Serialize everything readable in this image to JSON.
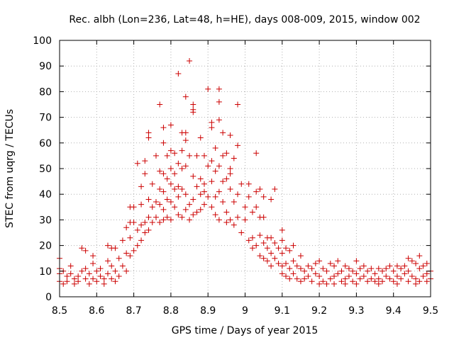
{
  "chart_data": {
    "type": "scatter",
    "title": "Rec. albh (Lon=236, Lat=48, h=HE), days 008-009, 2015, window 002",
    "xlabel": "GPS time / Days of year 2015",
    "ylabel": "STEC from uqrg / TECUs",
    "xlim": [
      8.5,
      9.5
    ],
    "ylim": [
      0,
      100
    ],
    "xticks": [
      8.5,
      8.6,
      8.7,
      8.8,
      8.9,
      9.0,
      9.1,
      9.2,
      9.3,
      9.4,
      9.5
    ],
    "xtick_labels": [
      "8.5",
      "8.6",
      "8.7",
      "8.8",
      "8.9",
      "9",
      "9.1",
      "9.2",
      "9.3",
      "9.4",
      "9.5"
    ],
    "yticks": [
      0,
      10,
      20,
      30,
      40,
      50,
      60,
      70,
      80,
      90,
      100
    ],
    "ytick_labels": [
      "0",
      "10",
      "20",
      "30",
      "40",
      "50",
      "60",
      "70",
      "80",
      "90",
      "100"
    ],
    "grid": true,
    "marker": "+",
    "color": "#cc0000",
    "series": [
      {
        "name": "STEC",
        "points": [
          [
            8.5,
            15
          ],
          [
            8.5,
            11
          ],
          [
            8.5,
            9
          ],
          [
            8.5,
            6
          ],
          [
            8.51,
            10
          ],
          [
            8.51,
            5
          ],
          [
            8.52,
            8
          ],
          [
            8.52,
            6
          ],
          [
            8.53,
            12
          ],
          [
            8.53,
            9
          ],
          [
            8.54,
            7
          ],
          [
            8.54,
            5
          ],
          [
            8.55,
            8
          ],
          [
            8.55,
            6
          ],
          [
            8.56,
            19
          ],
          [
            8.56,
            10
          ],
          [
            8.57,
            18
          ],
          [
            8.57,
            11
          ],
          [
            8.57,
            7
          ],
          [
            8.58,
            5
          ],
          [
            8.58,
            9
          ],
          [
            8.59,
            16
          ],
          [
            8.59,
            13
          ],
          [
            8.59,
            7
          ],
          [
            8.6,
            10
          ],
          [
            8.6,
            6
          ],
          [
            8.61,
            11
          ],
          [
            8.61,
            8
          ],
          [
            8.62,
            7
          ],
          [
            8.62,
            5
          ],
          [
            8.63,
            20
          ],
          [
            8.63,
            14
          ],
          [
            8.63,
            9
          ],
          [
            8.64,
            19
          ],
          [
            8.64,
            12
          ],
          [
            8.64,
            7
          ],
          [
            8.65,
            19
          ],
          [
            8.65,
            10
          ],
          [
            8.65,
            6
          ],
          [
            8.66,
            15
          ],
          [
            8.66,
            8
          ],
          [
            8.67,
            22
          ],
          [
            8.67,
            12
          ],
          [
            8.68,
            27
          ],
          [
            8.68,
            17
          ],
          [
            8.68,
            10
          ],
          [
            8.69,
            35
          ],
          [
            8.69,
            29
          ],
          [
            8.69,
            23
          ],
          [
            8.69,
            16
          ],
          [
            8.7,
            35
          ],
          [
            8.7,
            29
          ],
          [
            8.7,
            18
          ],
          [
            8.71,
            52
          ],
          [
            8.71,
            26
          ],
          [
            8.71,
            20
          ],
          [
            8.72,
            43
          ],
          [
            8.72,
            36
          ],
          [
            8.72,
            28
          ],
          [
            8.72,
            22
          ],
          [
            8.73,
            53
          ],
          [
            8.73,
            48
          ],
          [
            8.73,
            29
          ],
          [
            8.73,
            25
          ],
          [
            8.74,
            64
          ],
          [
            8.74,
            62
          ],
          [
            8.74,
            38
          ],
          [
            8.74,
            31
          ],
          [
            8.74,
            26
          ],
          [
            8.75,
            44
          ],
          [
            8.75,
            35
          ],
          [
            8.75,
            29
          ],
          [
            8.76,
            55
          ],
          [
            8.76,
            37
          ],
          [
            8.76,
            31
          ],
          [
            8.77,
            75
          ],
          [
            8.77,
            49
          ],
          [
            8.77,
            42
          ],
          [
            8.77,
            36
          ],
          [
            8.77,
            29
          ],
          [
            8.78,
            66
          ],
          [
            8.78,
            60
          ],
          [
            8.78,
            48
          ],
          [
            8.78,
            41
          ],
          [
            8.78,
            34
          ],
          [
            8.78,
            30
          ],
          [
            8.79,
            55
          ],
          [
            8.79,
            46
          ],
          [
            8.79,
            38
          ],
          [
            8.79,
            31
          ],
          [
            8.8,
            67
          ],
          [
            8.8,
            57
          ],
          [
            8.8,
            50
          ],
          [
            8.8,
            44
          ],
          [
            8.8,
            37
          ],
          [
            8.8,
            30
          ],
          [
            8.81,
            56
          ],
          [
            8.81,
            48
          ],
          [
            8.81,
            42
          ],
          [
            8.81,
            35
          ],
          [
            8.82,
            87
          ],
          [
            8.82,
            52
          ],
          [
            8.82,
            43
          ],
          [
            8.82,
            39
          ],
          [
            8.82,
            32
          ],
          [
            8.83,
            64
          ],
          [
            8.83,
            57
          ],
          [
            8.83,
            50
          ],
          [
            8.83,
            42
          ],
          [
            8.83,
            31
          ],
          [
            8.84,
            78
          ],
          [
            8.84,
            64
          ],
          [
            8.84,
            61
          ],
          [
            8.84,
            51
          ],
          [
            8.84,
            40
          ],
          [
            8.84,
            34
          ],
          [
            8.85,
            92
          ],
          [
            8.85,
            55
          ],
          [
            8.85,
            36
          ],
          [
            8.85,
            30
          ],
          [
            8.86,
            75
          ],
          [
            8.86,
            73
          ],
          [
            8.86,
            72
          ],
          [
            8.86,
            47
          ],
          [
            8.86,
            38
          ],
          [
            8.86,
            32
          ],
          [
            8.87,
            55
          ],
          [
            8.87,
            43
          ],
          [
            8.87,
            33
          ],
          [
            8.88,
            62
          ],
          [
            8.88,
            46
          ],
          [
            8.88,
            40
          ],
          [
            8.88,
            34
          ],
          [
            8.89,
            55
          ],
          [
            8.89,
            44
          ],
          [
            8.89,
            41
          ],
          [
            8.89,
            36
          ],
          [
            8.9,
            81
          ],
          [
            8.9,
            51
          ],
          [
            8.9,
            39
          ],
          [
            8.91,
            68
          ],
          [
            8.91,
            66
          ],
          [
            8.91,
            53
          ],
          [
            8.91,
            45
          ],
          [
            8.91,
            35
          ],
          [
            8.92,
            58
          ],
          [
            8.92,
            49
          ],
          [
            8.92,
            39
          ],
          [
            8.92,
            32
          ],
          [
            8.93,
            81
          ],
          [
            8.93,
            76
          ],
          [
            8.93,
            69
          ],
          [
            8.93,
            51
          ],
          [
            8.93,
            41
          ],
          [
            8.93,
            30
          ],
          [
            8.94,
            64
          ],
          [
            8.94,
            55
          ],
          [
            8.94,
            45
          ],
          [
            8.94,
            37
          ],
          [
            8.95,
            56
          ],
          [
            8.95,
            46
          ],
          [
            8.95,
            33
          ],
          [
            8.95,
            29
          ],
          [
            8.96,
            63
          ],
          [
            8.96,
            50
          ],
          [
            8.96,
            48
          ],
          [
            8.96,
            42
          ],
          [
            8.96,
            30
          ],
          [
            8.97,
            54
          ],
          [
            8.97,
            37
          ],
          [
            8.97,
            28
          ],
          [
            8.98,
            75
          ],
          [
            8.98,
            59
          ],
          [
            8.98,
            40
          ],
          [
            8.98,
            31
          ],
          [
            8.99,
            44
          ],
          [
            8.99,
            25
          ],
          [
            9.0,
            35
          ],
          [
            9.0,
            30
          ],
          [
            9.01,
            44
          ],
          [
            9.01,
            39
          ],
          [
            9.01,
            22
          ],
          [
            9.02,
            33
          ],
          [
            9.02,
            23
          ],
          [
            9.02,
            19
          ],
          [
            9.03,
            56
          ],
          [
            9.03,
            41
          ],
          [
            9.03,
            35
          ],
          [
            9.03,
            20
          ],
          [
            9.04,
            42
          ],
          [
            9.04,
            31
          ],
          [
            9.04,
            24
          ],
          [
            9.04,
            16
          ],
          [
            9.05,
            39
          ],
          [
            9.05,
            31
          ],
          [
            9.05,
            21
          ],
          [
            9.05,
            15
          ],
          [
            9.06,
            23
          ],
          [
            9.06,
            19
          ],
          [
            9.06,
            14
          ],
          [
            9.07,
            38
          ],
          [
            9.07,
            23
          ],
          [
            9.07,
            17
          ],
          [
            9.07,
            12
          ],
          [
            9.08,
            42
          ],
          [
            9.08,
            21
          ],
          [
            9.08,
            15
          ],
          [
            9.09,
            19
          ],
          [
            9.09,
            13
          ],
          [
            9.1,
            26
          ],
          [
            9.1,
            22
          ],
          [
            9.1,
            17
          ],
          [
            9.1,
            12
          ],
          [
            9.1,
            9
          ],
          [
            9.11,
            19
          ],
          [
            9.11,
            13
          ],
          [
            9.11,
            8
          ],
          [
            9.12,
            18
          ],
          [
            9.12,
            11
          ],
          [
            9.12,
            7
          ],
          [
            9.13,
            20
          ],
          [
            9.13,
            14
          ],
          [
            9.13,
            9
          ],
          [
            9.14,
            12
          ],
          [
            9.14,
            7
          ],
          [
            9.15,
            16
          ],
          [
            9.15,
            11
          ],
          [
            9.15,
            6
          ],
          [
            9.16,
            10
          ],
          [
            9.16,
            7
          ],
          [
            9.17,
            12
          ],
          [
            9.17,
            8
          ],
          [
            9.18,
            11
          ],
          [
            9.18,
            6
          ],
          [
            9.19,
            13
          ],
          [
            9.19,
            9
          ],
          [
            9.2,
            14
          ],
          [
            9.2,
            8
          ],
          [
            9.2,
            5
          ],
          [
            9.21,
            11
          ],
          [
            9.21,
            6
          ],
          [
            9.22,
            10
          ],
          [
            9.22,
            5
          ],
          [
            9.23,
            13
          ],
          [
            9.23,
            7
          ],
          [
            9.24,
            12
          ],
          [
            9.24,
            8
          ],
          [
            9.24,
            5
          ],
          [
            9.25,
            14
          ],
          [
            9.25,
            9
          ],
          [
            9.26,
            10
          ],
          [
            9.26,
            6
          ],
          [
            9.27,
            12
          ],
          [
            9.27,
            7
          ],
          [
            9.27,
            5
          ],
          [
            9.28,
            11
          ],
          [
            9.28,
            8
          ],
          [
            9.29,
            10
          ],
          [
            9.29,
            6
          ],
          [
            9.3,
            14
          ],
          [
            9.3,
            9
          ],
          [
            9.3,
            5
          ],
          [
            9.31,
            11
          ],
          [
            9.31,
            7
          ],
          [
            9.32,
            12
          ],
          [
            9.32,
            8
          ],
          [
            9.33,
            10
          ],
          [
            9.33,
            6
          ],
          [
            9.34,
            11
          ],
          [
            9.34,
            7
          ],
          [
            9.35,
            9
          ],
          [
            9.35,
            6
          ],
          [
            9.36,
            11
          ],
          [
            9.36,
            7
          ],
          [
            9.36,
            5
          ],
          [
            9.37,
            10
          ],
          [
            9.37,
            6
          ],
          [
            9.38,
            11
          ],
          [
            9.38,
            8
          ],
          [
            9.39,
            12
          ],
          [
            9.39,
            7
          ],
          [
            9.4,
            10
          ],
          [
            9.4,
            6
          ],
          [
            9.41,
            12
          ],
          [
            9.41,
            8
          ],
          [
            9.41,
            5
          ],
          [
            9.42,
            11
          ],
          [
            9.42,
            7
          ],
          [
            9.43,
            12
          ],
          [
            9.43,
            9
          ],
          [
            9.44,
            15
          ],
          [
            9.44,
            10
          ],
          [
            9.44,
            6
          ],
          [
            9.45,
            14
          ],
          [
            9.45,
            8
          ],
          [
            9.46,
            13
          ],
          [
            9.46,
            7
          ],
          [
            9.46,
            5
          ],
          [
            9.47,
            16
          ],
          [
            9.47,
            11
          ],
          [
            9.47,
            6
          ],
          [
            9.48,
            12
          ],
          [
            9.48,
            8
          ],
          [
            9.49,
            13
          ],
          [
            9.49,
            9
          ],
          [
            9.49,
            6
          ],
          [
            9.5,
            10
          ],
          [
            9.5,
            7
          ]
        ]
      }
    ]
  }
}
